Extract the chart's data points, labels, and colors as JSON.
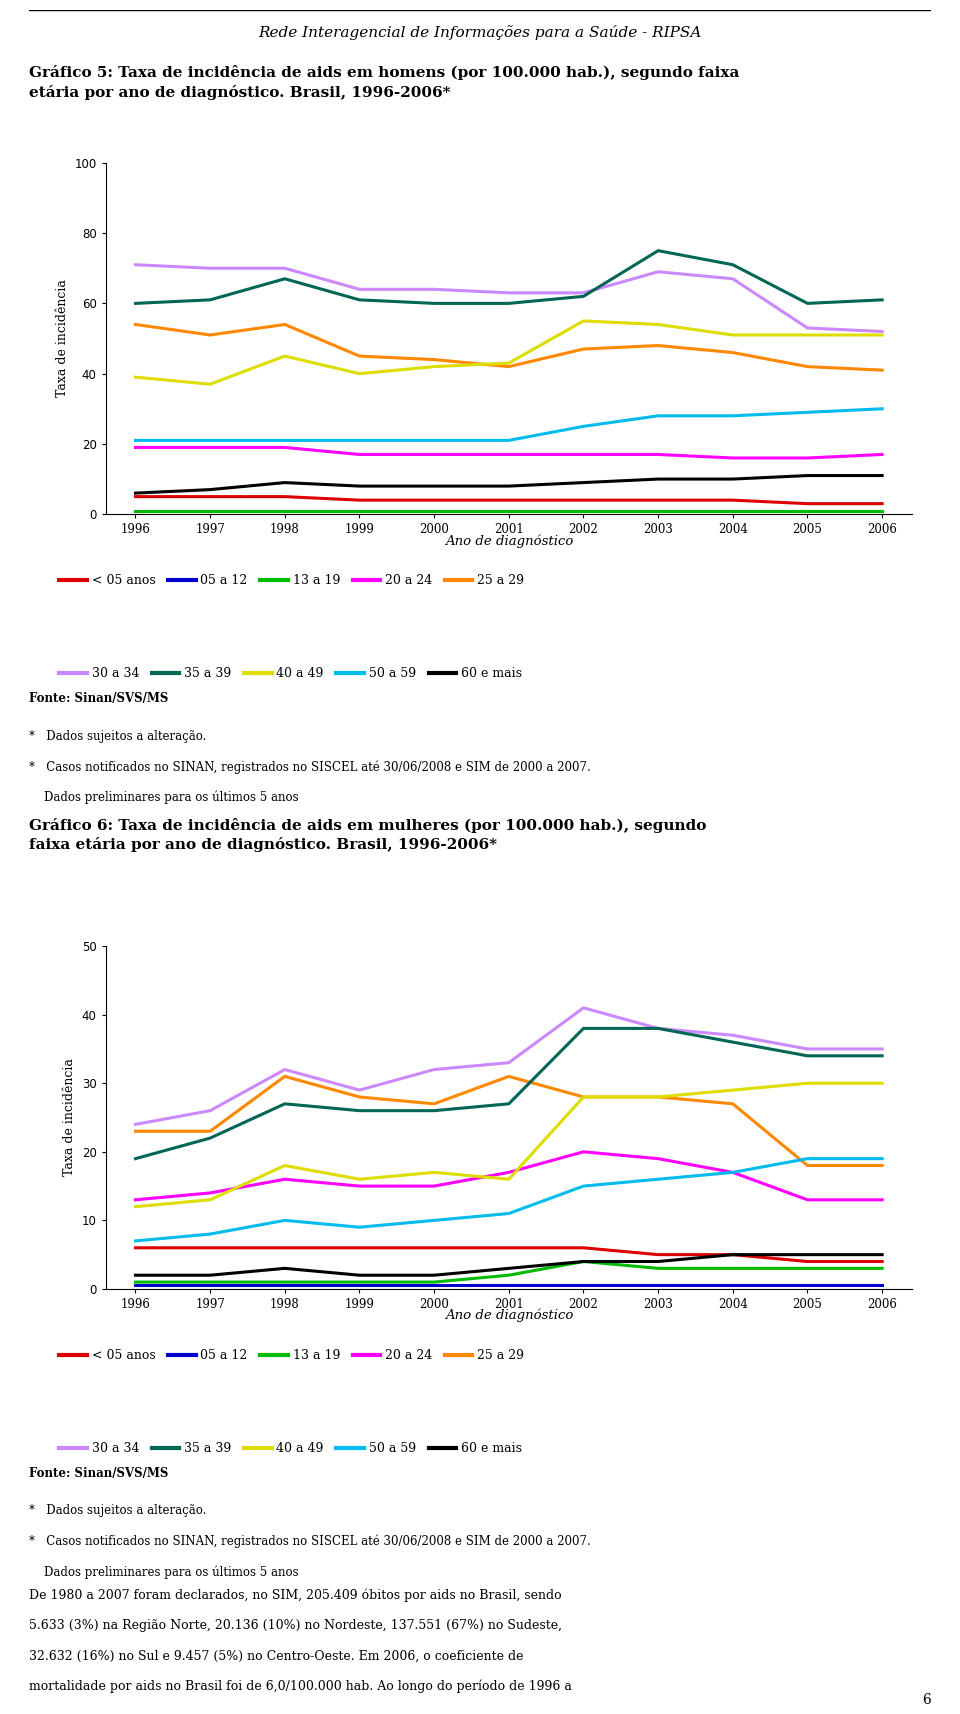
{
  "years": [
    1996,
    1997,
    1998,
    1999,
    2000,
    2001,
    2002,
    2003,
    2004,
    2005,
    2006
  ],
  "header": "Rede Interagencial de Informações para a Saúde - RIPSA",
  "title1": "Gráfico 5: Taxa de incidência de aids em homens (por 100.000 hab.), segundo faixa\netária por ano de diagnóstico. Brasil, 1996-2006*",
  "title2": "Gráfico 6: Taxa de incidência de aids em mulheres (por 100.000 hab.), segundo\nfaixa etária por ano de diagnóstico. Brasil, 1996-2006*",
  "ylabel": "Taxa de incidência",
  "xlabel": "Ano de diagnóstico",
  "chart1_ylim": [
    0,
    100
  ],
  "chart1_yticks": [
    0,
    20,
    40,
    60,
    80,
    100
  ],
  "chart2_ylim": [
    0,
    50
  ],
  "chart2_yticks": [
    0,
    10,
    20,
    30,
    40,
    50
  ],
  "legend_labels": [
    "< 05 anos",
    "05 a 12",
    "13 a 19",
    "20 a 24",
    "25 a 29",
    "30 a 34",
    "35 a 39",
    "40 a 49",
    "50 a 59",
    "60 e mais"
  ],
  "line_colors": [
    "#dd0000",
    "#0000cc",
    "#00bb00",
    "#ff00ff",
    "#ff8800",
    "#cc88ff",
    "#006655",
    "#dddd00",
    "#00bbee",
    "#000000"
  ],
  "chart1_data": {
    "lt05": [
      5,
      5,
      5,
      4,
      4,
      4,
      4,
      4,
      4,
      3,
      3
    ],
    "a0512": [
      1,
      1,
      1,
      1,
      1,
      1,
      1,
      1,
      1,
      1,
      1
    ],
    "a1319": [
      1,
      1,
      1,
      1,
      1,
      1,
      1,
      1,
      1,
      1,
      1
    ],
    "a2024": [
      19,
      19,
      19,
      17,
      17,
      17,
      17,
      17,
      16,
      16,
      17
    ],
    "a2529": [
      54,
      51,
      54,
      45,
      44,
      42,
      47,
      48,
      46,
      42,
      41
    ],
    "a3034": [
      71,
      70,
      70,
      64,
      64,
      63,
      63,
      69,
      67,
      53,
      52
    ],
    "a3539": [
      60,
      61,
      67,
      61,
      60,
      60,
      62,
      75,
      71,
      60,
      61
    ],
    "a4049": [
      39,
      37,
      45,
      40,
      42,
      43,
      55,
      54,
      51,
      51,
      51
    ],
    "a5059": [
      21,
      21,
      21,
      21,
      21,
      21,
      25,
      28,
      28,
      29,
      30
    ],
    "a60m": [
      6,
      7,
      9,
      8,
      8,
      8,
      9,
      10,
      10,
      11,
      11
    ]
  },
  "chart2_data": {
    "lt05": [
      6,
      6,
      6,
      6,
      6,
      6,
      6,
      5,
      5,
      4,
      4
    ],
    "a0512": [
      0.5,
      0.5,
      0.5,
      0.5,
      0.5,
      0.5,
      0.5,
      0.5,
      0.5,
      0.5,
      0.5
    ],
    "a1319": [
      1,
      1,
      1,
      1,
      1,
      2,
      4,
      3,
      3,
      3,
      3
    ],
    "a2024": [
      13,
      14,
      16,
      15,
      15,
      17,
      20,
      19,
      17,
      13,
      13
    ],
    "a2529": [
      23,
      23,
      31,
      28,
      27,
      31,
      28,
      28,
      27,
      18,
      18
    ],
    "a3034": [
      24,
      26,
      32,
      29,
      32,
      33,
      41,
      38,
      37,
      35,
      35
    ],
    "a3539": [
      19,
      22,
      27,
      26,
      26,
      27,
      38,
      38,
      36,
      34,
      34
    ],
    "a4049": [
      12,
      13,
      18,
      16,
      17,
      16,
      28,
      28,
      29,
      30,
      30
    ],
    "a5059": [
      7,
      8,
      10,
      9,
      10,
      11,
      15,
      16,
      17,
      19,
      19
    ],
    "a60m": [
      2,
      2,
      3,
      2,
      2,
      3,
      4,
      4,
      5,
      5,
      5
    ]
  },
  "fonte_text": "Fonte: Sinan/SVS/MS",
  "note1": "*   Dados sujeitos a alteração.",
  "note2a": "*   Casos notificados no SINAN, registrados no SISCEL até 30/06/2008 e SIM de 2000 a 2007.",
  "note2b": "    Dados preliminares para os últimos 5 anos",
  "bottom_text_lines": [
    "De 1980 a 2007 foram declarados, no SIM, 205.409 óbitos por aids no Brasil, sendo",
    "5.633 (3%) na Região Norte, 20.136 (10%) no Nordeste, 137.551 (67%) no Sudeste,",
    "32.632 (16%) no Sul e 9.457 (5%) no Centro-Oeste. Em 2006, o coeficiente de",
    "mortalidade por aids no Brasil foi de 6,0/100.000 hab. Ao longo do período de 1996 a"
  ],
  "page_number": "6",
  "background_color": "#ffffff"
}
